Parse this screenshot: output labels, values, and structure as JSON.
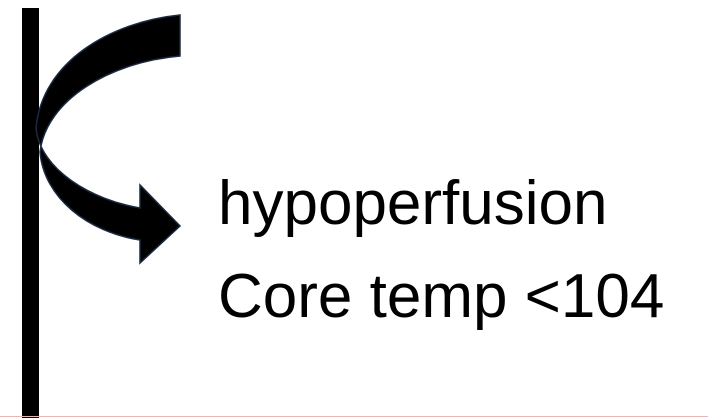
{
  "lines": [
    "hypoperfusion",
    "Core temp <104"
  ]
}
